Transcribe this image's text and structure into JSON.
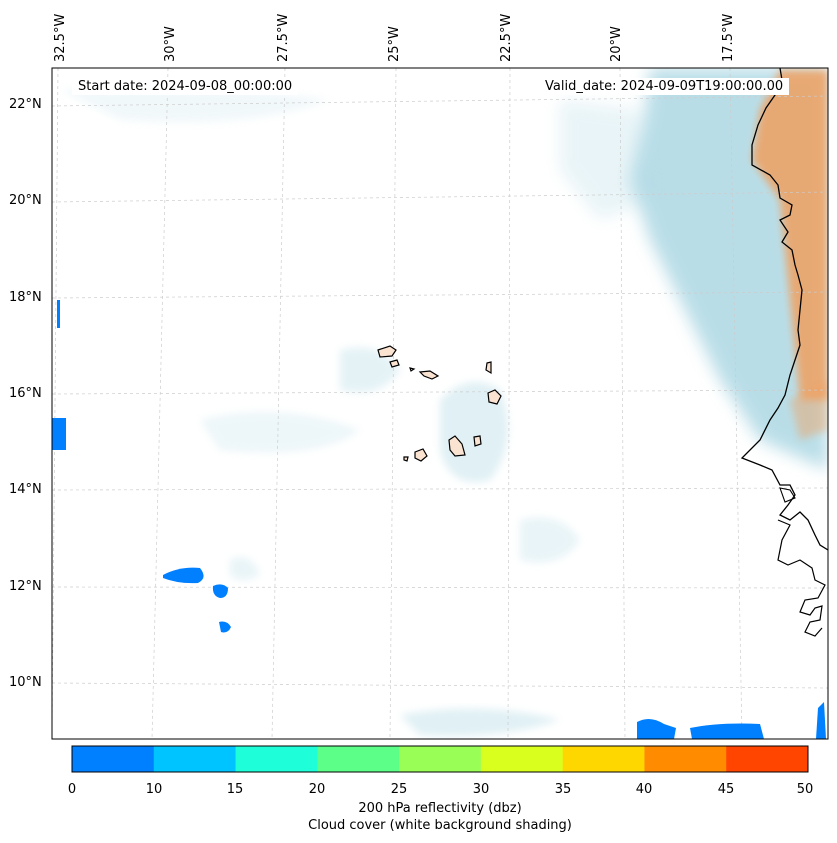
{
  "map": {
    "start_date": "Start date: 2024-09-08_00:00:00",
    "valid_date": "Valid_date: 2024-09-09T19:00:00.00",
    "lon_labels": [
      "32.5°W",
      "30°W",
      "27.5°W",
      "25°W",
      "22.5°W",
      "20°W",
      "17.5°W"
    ],
    "lat_labels": [
      "22°N",
      "20°N",
      "18°N",
      "16°N",
      "14°N",
      "12°N",
      "10°N"
    ],
    "extent": {
      "lon_min": -32.8,
      "lon_max": -15.3,
      "lat_min": 9.0,
      "lat_max": 22.7
    }
  },
  "colorbar": {
    "ticks": [
      "0",
      "10",
      "15",
      "20",
      "25",
      "30",
      "35",
      "40",
      "45",
      "50"
    ],
    "colors": [
      "#0080ff",
      "#00c4ff",
      "#1effd9",
      "#5cff87",
      "#99ff57",
      "#d9ff1f",
      "#ffd700",
      "#ff8c00",
      "#ff4500"
    ],
    "label_line1": "200 hPa reflectivity (dbz)",
    "label_line2": "Cloud cover (white background shading)"
  },
  "colors": {
    "cloud": "#a8d5e2",
    "land_hot": "#f0a060",
    "island_fill": "#fbe3d2",
    "reflectivity_low": "#0080ff"
  }
}
